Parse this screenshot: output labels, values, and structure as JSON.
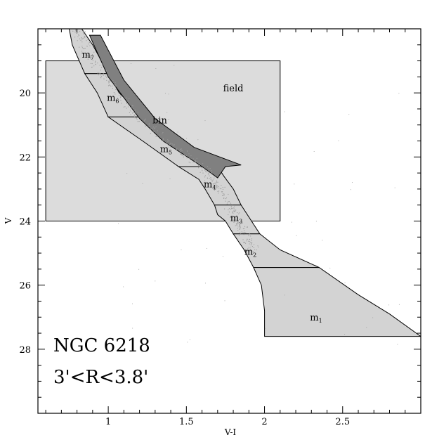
{
  "chart_data": {
    "type": "scatter",
    "title": "",
    "xlabel": "V-I",
    "ylabel": "V",
    "xlim": [
      0.55,
      3.0
    ],
    "ylim": [
      30.0,
      18.0
    ],
    "y_inverted": true,
    "x_ticks": [
      1,
      1.5,
      2,
      2.5
    ],
    "x_tick_labels": [
      "1",
      "1.5",
      "2",
      "2.5"
    ],
    "y_ticks": [
      20,
      22,
      24,
      26,
      28
    ],
    "y_tick_labels": [
      "20",
      "22",
      "24",
      "26",
      "28"
    ],
    "annotations": [
      "NGC 6218",
      "3'<R<3.8'"
    ],
    "colors": {
      "field": "#dcdcdc",
      "mass_bins": "#d3d3d3",
      "binary": "#808080",
      "stars": "#9a9a9a"
    },
    "field_box": {
      "label": "field",
      "x": [
        0.6,
        2.1
      ],
      "y": [
        19.0,
        24.0
      ]
    },
    "binary_region": {
      "label": "bin",
      "polygon": [
        [
          0.88,
          18.2
        ],
        [
          0.95,
          18.2
        ],
        [
          1.1,
          19.6
        ],
        [
          1.3,
          20.8
        ],
        [
          1.55,
          21.7
        ],
        [
          1.85,
          22.25
        ],
        [
          1.75,
          22.3
        ],
        [
          1.7,
          22.65
        ],
        [
          1.6,
          22.3
        ],
        [
          1.35,
          21.5
        ],
        [
          1.2,
          20.8
        ],
        [
          1.0,
          19.5
        ],
        [
          0.88,
          18.2
        ]
      ]
    },
    "mass_bins": [
      {
        "label": "m",
        "sub": "7",
        "polygon": [
          [
            0.75,
            18.0
          ],
          [
            0.83,
            18.0
          ],
          [
            0.9,
            18.5
          ],
          [
            1.0,
            19.4
          ],
          [
            0.85,
            19.4
          ],
          [
            0.77,
            18.5
          ]
        ]
      },
      {
        "label": "m",
        "sub": "6",
        "polygon": [
          [
            0.85,
            19.4
          ],
          [
            1.0,
            19.4
          ],
          [
            1.07,
            20.0
          ],
          [
            1.23,
            20.75
          ],
          [
            1.0,
            20.75
          ],
          [
            0.93,
            20.0
          ]
        ]
      },
      {
        "label": "m",
        "sub": "5",
        "polygon": [
          [
            1.0,
            20.75
          ],
          [
            1.23,
            20.75
          ],
          [
            1.45,
            21.5
          ],
          [
            1.7,
            22.3
          ],
          [
            1.45,
            22.3
          ],
          [
            1.22,
            21.5
          ]
        ]
      },
      {
        "label": "m",
        "sub": "4",
        "polygon": [
          [
            1.45,
            22.3
          ],
          [
            1.7,
            22.3
          ],
          [
            1.74,
            22.6
          ],
          [
            1.8,
            23.0
          ],
          [
            1.85,
            23.5
          ],
          [
            1.68,
            23.5
          ],
          [
            1.62,
            23.0
          ],
          [
            1.58,
            22.7
          ]
        ]
      },
      {
        "label": "m",
        "sub": "3",
        "polygon": [
          [
            1.68,
            23.5
          ],
          [
            1.85,
            23.5
          ],
          [
            1.97,
            24.4
          ],
          [
            1.8,
            24.4
          ],
          [
            1.75,
            24.0
          ],
          [
            1.7,
            23.8
          ]
        ]
      },
      {
        "label": "m",
        "sub": "2",
        "polygon": [
          [
            1.8,
            24.4
          ],
          [
            1.97,
            24.4
          ],
          [
            2.1,
            24.9
          ],
          [
            2.35,
            25.45
          ],
          [
            1.93,
            25.45
          ],
          [
            1.87,
            24.9
          ]
        ]
      },
      {
        "label": "m",
        "sub": "1",
        "polygon": [
          [
            1.93,
            25.45
          ],
          [
            2.35,
            25.45
          ],
          [
            2.6,
            26.3
          ],
          [
            2.8,
            26.9
          ],
          [
            3.0,
            27.6
          ],
          [
            2.0,
            27.6
          ],
          [
            2.0,
            26.8
          ],
          [
            1.98,
            26.0
          ]
        ]
      }
    ],
    "sequence_stars": {
      "ridge": [
        [
          0.8,
          18.0
        ],
        [
          0.9,
          19.0
        ],
        [
          1.05,
          20.0
        ],
        [
          1.2,
          20.8
        ],
        [
          1.4,
          21.6
        ],
        [
          1.6,
          22.3
        ],
        [
          1.7,
          22.9
        ],
        [
          1.78,
          23.6
        ],
        [
          1.85,
          24.2
        ],
        [
          1.95,
          25.0
        ]
      ],
      "count": 450,
      "width": 0.05
    },
    "field_stars_count": 60
  }
}
